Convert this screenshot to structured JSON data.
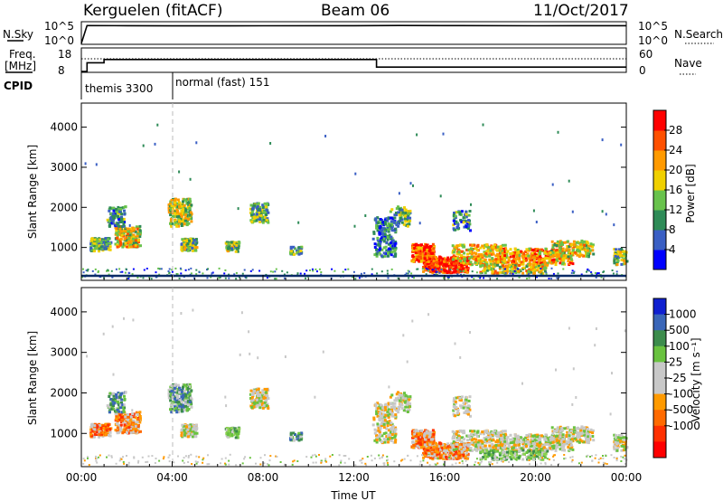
{
  "header": {
    "station": "Kerguelen (fitACF)",
    "beam": "Beam 06",
    "date": "11/Oct/2017"
  },
  "top_panels": {
    "nsky_label": "N.Sky",
    "nsearch_label": "N.Search",
    "nsky_ticks": [
      "10^5",
      "10^0"
    ],
    "nsearch_ticks": [
      "10^5",
      "10^0"
    ],
    "freq_label_line1": "Freq.",
    "freq_label_line2": "[MHz]",
    "freq_ticks": [
      "18",
      "8"
    ],
    "nave_label": "Nave",
    "nave_ticks": [
      "60",
      "0"
    ],
    "cpid_label": "CPID",
    "cpid_segments": [
      {
        "text": "themis 3300",
        "start_hour": 0,
        "end_hour": 4
      },
      {
        "text": "normal (fast) 151",
        "start_hour": 4,
        "end_hour": 24
      }
    ]
  },
  "colors": {
    "power_scale": [
      "#0000ff",
      "#3a5fc4",
      "#2e8b57",
      "#68c24c",
      "#f0d000",
      "#ff9a00",
      "#ff5000",
      "#ff0000"
    ],
    "velocity_scale": [
      "#1020d0",
      "#3a66b8",
      "#3c8c4c",
      "#69c23f",
      "#c8c8c8",
      "#c8c8c8",
      "#ff9a00",
      "#ff6a00",
      "#ff3000",
      "#ff0000"
    ],
    "ground_line": "#0a2b66"
  },
  "chart_data": [
    {
      "type": "line",
      "name": "N.Sky / N.Search",
      "x": [
        0,
        0.25,
        2,
        4,
        8,
        12,
        14,
        16,
        20,
        24
      ],
      "series": [
        {
          "name": "N.Sky",
          "values": [
            1,
            30000,
            28000,
            26000,
            27000,
            29000,
            32000,
            30000,
            27000,
            28000
          ]
        }
      ],
      "ylim": [
        1,
        100000
      ],
      "yscale": "log"
    },
    {
      "type": "line",
      "name": "Freq / Nave",
      "x": [
        0,
        0.25,
        0.25,
        1,
        1,
        13,
        13,
        24
      ],
      "series": [
        {
          "name": "Freq.",
          "values": [
            8,
            8,
            12,
            12,
            13.5,
            13.5,
            10,
            10
          ]
        },
        {
          "name": "Nave",
          "values": [
            35,
            35,
            35,
            35,
            35,
            35,
            35,
            35
          ]
        }
      ],
      "ylim": [
        8,
        18
      ]
    },
    {
      "type": "heatmap",
      "name": "Power",
      "xlabel": "",
      "ylabel": "Slant Range [km]",
      "xlim": [
        0,
        24
      ],
      "ylim": [
        180,
        4600
      ],
      "yticks": [
        "1000",
        "2000",
        "3000",
        "4000"
      ],
      "colorbar_label": "Power [dB]",
      "colorbar_ticks": [
        "4",
        "8",
        "12",
        "16",
        "20",
        "24",
        "28"
      ],
      "colorbar_range": [
        0,
        32
      ]
    },
    {
      "type": "heatmap",
      "name": "Velocity",
      "xlabel": "Time UT",
      "ylabel": "Slant Range [km]",
      "xlim": [
        0,
        24
      ],
      "ylim": [
        180,
        4600
      ],
      "xticks": [
        "00:00",
        "04:00",
        "08:00",
        "12:00",
        "16:00",
        "20:00",
        "00:00"
      ],
      "yticks": [
        "1000",
        "2000",
        "3000",
        "4000"
      ],
      "colorbar_label": "Velocity [m s⁻¹]",
      "colorbar_ticks": [
        "1000",
        "500",
        "100",
        "25",
        "-25",
        "-100",
        "-500",
        "-1000"
      ]
    }
  ]
}
